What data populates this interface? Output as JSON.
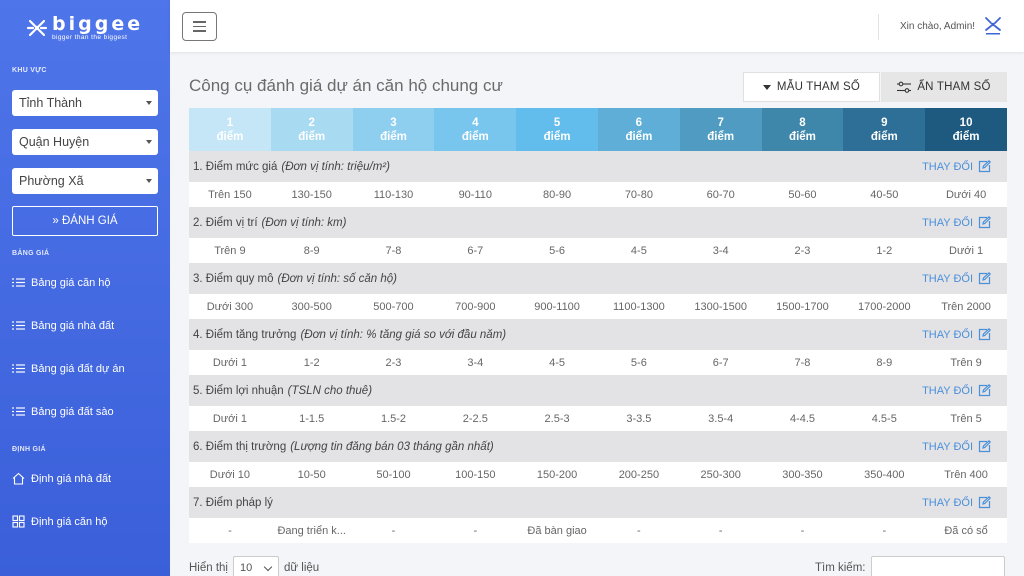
{
  "brand": {
    "name": "biggee",
    "tagline": "bigger than the biggest"
  },
  "sidebar": {
    "section_area": "KHU VỰC",
    "selects": [
      {
        "label": "Tỉnh Thành"
      },
      {
        "label": "Quận Huyện"
      },
      {
        "label": "Phường Xã"
      }
    ],
    "eval_button": "» ĐÁNH GIÁ",
    "section_price": "BẢNG GIÁ",
    "price_items": [
      "Bảng giá căn hộ",
      "Bảng giá nhà đất",
      "Bảng giá đất dự án",
      "Bảng giá đất sào"
    ],
    "section_valuation": "ĐỊNH GIÁ",
    "valuation_items": [
      {
        "label": "Định giá nhà đất",
        "icon": "home-icon"
      },
      {
        "label": "Định giá căn hộ",
        "icon": "grid-icon"
      }
    ]
  },
  "header": {
    "greeting": "Xin chào, Admin!"
  },
  "main": {
    "title": "Công cụ đánh giá dự án căn hộ chung cư",
    "btn_template": "MẪU THAM SỐ",
    "btn_hide": "ẨN THAM SỐ",
    "change_label": "THAY ĐỔI",
    "score_unit": "điểm",
    "score_levels": [
      "1",
      "2",
      "3",
      "4",
      "5",
      "6",
      "7",
      "8",
      "9",
      "10"
    ],
    "score_colors": [
      "#c5e6f6",
      "#a8daf2",
      "#8ecff0",
      "#78c6ee",
      "#63bdec",
      "#5eaed8",
      "#4f9bc2",
      "#3f86ab",
      "#2d6f96",
      "#1e5a80"
    ],
    "criteria": [
      {
        "title": "1. Điểm mức giá",
        "unit": "(Đơn vị tính: triệu/m²)",
        "values": [
          "Trên 150",
          "130-150",
          "110-130",
          "90-110",
          "80-90",
          "70-80",
          "60-70",
          "50-60",
          "40-50",
          "Dưới 40"
        ]
      },
      {
        "title": "2. Điểm vị trí",
        "unit": "(Đơn vị tính: km)",
        "values": [
          "Trên 9",
          "8-9",
          "7-8",
          "6-7",
          "5-6",
          "4-5",
          "3-4",
          "2-3",
          "1-2",
          "Dưới 1"
        ]
      },
      {
        "title": "3. Điểm quy mô",
        "unit": "(Đơn vị tính: số căn hộ)",
        "values": [
          "Dưới 300",
          "300-500",
          "500-700",
          "700-900",
          "900-1100",
          "1100-1300",
          "1300-1500",
          "1500-1700",
          "1700-2000",
          "Trên 2000"
        ]
      },
      {
        "title": "4. Điểm tăng trưởng",
        "unit": "(Đơn vị tính: % tăng giá so với đầu năm)",
        "values": [
          "Dưới 1",
          "1-2",
          "2-3",
          "3-4",
          "4-5",
          "5-6",
          "6-7",
          "7-8",
          "8-9",
          "Trên 9"
        ]
      },
      {
        "title": "5. Điểm lợi nhuận",
        "unit": "(TSLN cho thuê)",
        "values": [
          "Dưới 1",
          "1-1.5",
          "1.5-2",
          "2-2.5",
          "2.5-3",
          "3-3.5",
          "3.5-4",
          "4-4.5",
          "4.5-5",
          "Trên 5"
        ]
      },
      {
        "title": "6. Điểm thị trường",
        "unit": "(Lượng tin đăng bán 03 tháng gần nhất)",
        "values": [
          "Dưới 10",
          "10-50",
          "50-100",
          "100-150",
          "150-200",
          "200-250",
          "250-300",
          "300-350",
          "350-400",
          "Trên 400"
        ]
      },
      {
        "title": "7. Điểm pháp lý",
        "unit": "",
        "values": [
          "-",
          "Đang triển k...",
          "-",
          "-",
          "Đã bàn giao",
          "-",
          "-",
          "-",
          "-",
          "Đã có sổ"
        ]
      }
    ],
    "footer": {
      "show_label": "Hiển thị",
      "page_length": "10",
      "records_label": "dữ liệu",
      "search_label": "Tìm kiếm:",
      "search_value": ""
    }
  }
}
